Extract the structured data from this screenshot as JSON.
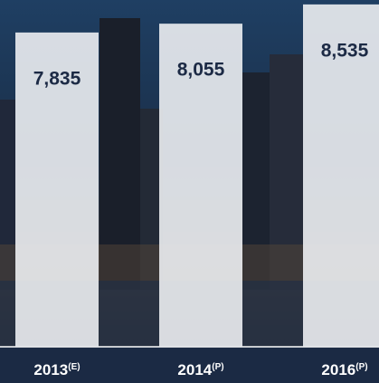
{
  "chart_data": {
    "type": "bar",
    "categories": [
      "2013",
      "2014",
      "2016"
    ],
    "category_notes": [
      "(E)",
      "(P)",
      "(P)"
    ],
    "values": [
      7835,
      8055,
      8535
    ],
    "value_labels": [
      "7,835",
      "8,055",
      "8,535"
    ],
    "color": "#eceef2",
    "ylim": [
      0,
      8600
    ]
  }
}
